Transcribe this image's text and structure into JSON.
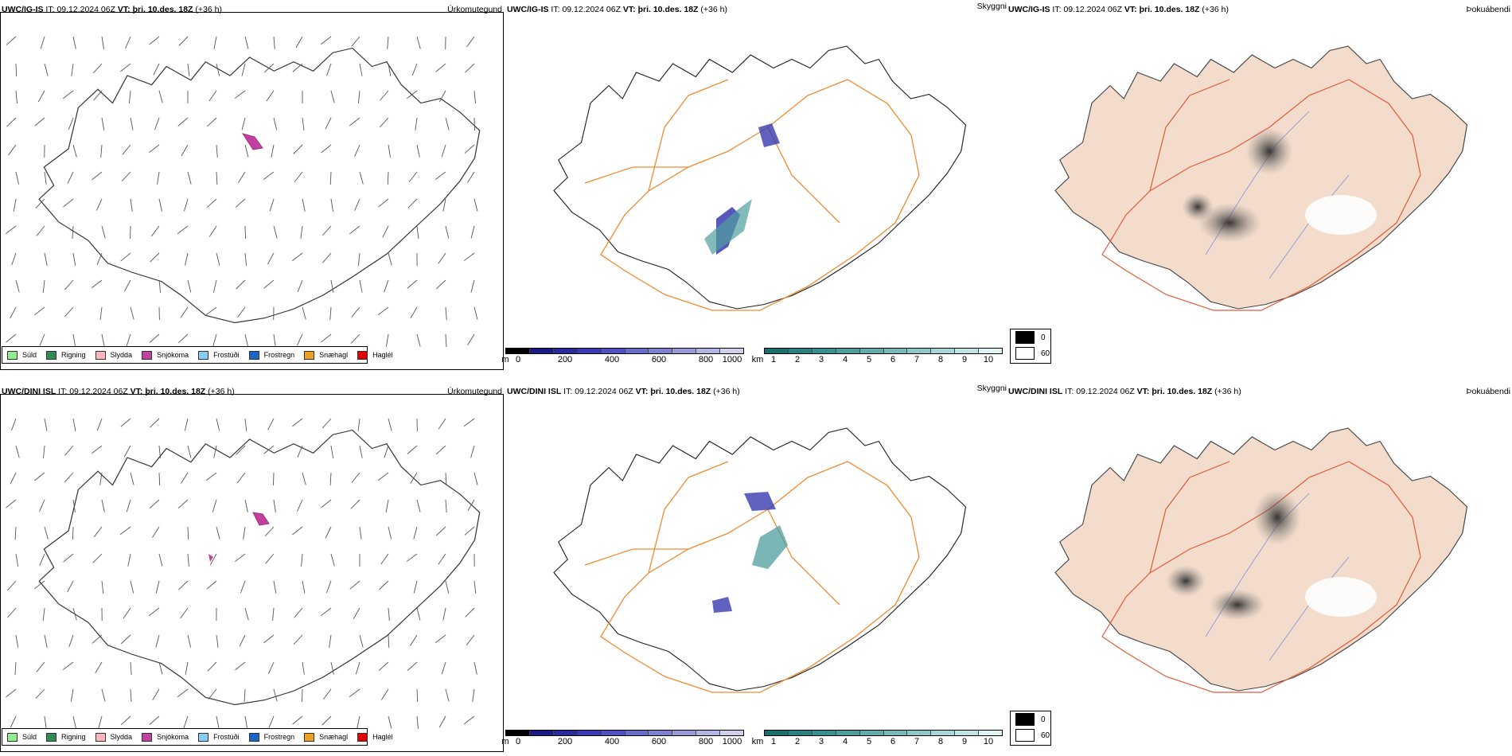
{
  "rows": [
    {
      "model": "UWC/IG-IS",
      "it_label": "IT:",
      "it_value": "09.12.2024 06Z",
      "vt_label": "VT:",
      "vt_value": "þri. 10.des. 18Z",
      "lead": "(+36 h)"
    },
    {
      "model": "UWC/DINI ISL",
      "it_label": "IT:",
      "it_value": "09.12.2024 06Z",
      "vt_label": "VT:",
      "vt_value": "þri. 10.des. 18Z",
      "lead": "(+36 h)"
    }
  ],
  "panel_titles": {
    "precip_type": "Úrkomutegund",
    "cloud": "Skyggni",
    "fog": "Þokuábendi"
  },
  "precip_legend": [
    {
      "label": "Súld",
      "color": "#90ee90"
    },
    {
      "label": "Rigning",
      "color": "#2e8b57"
    },
    {
      "label": "Slydda",
      "color": "#ffb6c1"
    },
    {
      "label": "Snjókoma",
      "color": "#c040a0"
    },
    {
      "label": "Frostúði",
      "color": "#87cefa"
    },
    {
      "label": "Frostregn",
      "color": "#1e64c8"
    },
    {
      "label": "Snæhagl",
      "color": "#f0a020"
    },
    {
      "label": "Haglél",
      "color": "#e00000"
    }
  ],
  "ceiling_bar": {
    "unit": "m",
    "ticks": [
      "0",
      "200",
      "400",
      "600",
      "800",
      "1000"
    ],
    "colors": [
      "#000000",
      "#1a1a80",
      "#2a2a9a",
      "#3a3ab0",
      "#5050c0",
      "#6a6ac8",
      "#8080d0",
      "#9a9ad8",
      "#b4b4e0",
      "#d0d0ec"
    ]
  },
  "visibility_bar": {
    "unit": "km",
    "ticks": [
      "1",
      "2",
      "3",
      "4",
      "5",
      "6",
      "7",
      "8",
      "9",
      "10"
    ],
    "colors": [
      "#1a6e6e",
      "#2a8080",
      "#3a9090",
      "#4e9e9e",
      "#62acac",
      "#78baba",
      "#8ec8c8",
      "#a6d6d6",
      "#c0e4e4",
      "#e0f2f2"
    ]
  },
  "fog_legend": [
    {
      "label": "0",
      "color": "#000000"
    },
    {
      "label": "60",
      "color": "#ffffff"
    }
  ]
}
